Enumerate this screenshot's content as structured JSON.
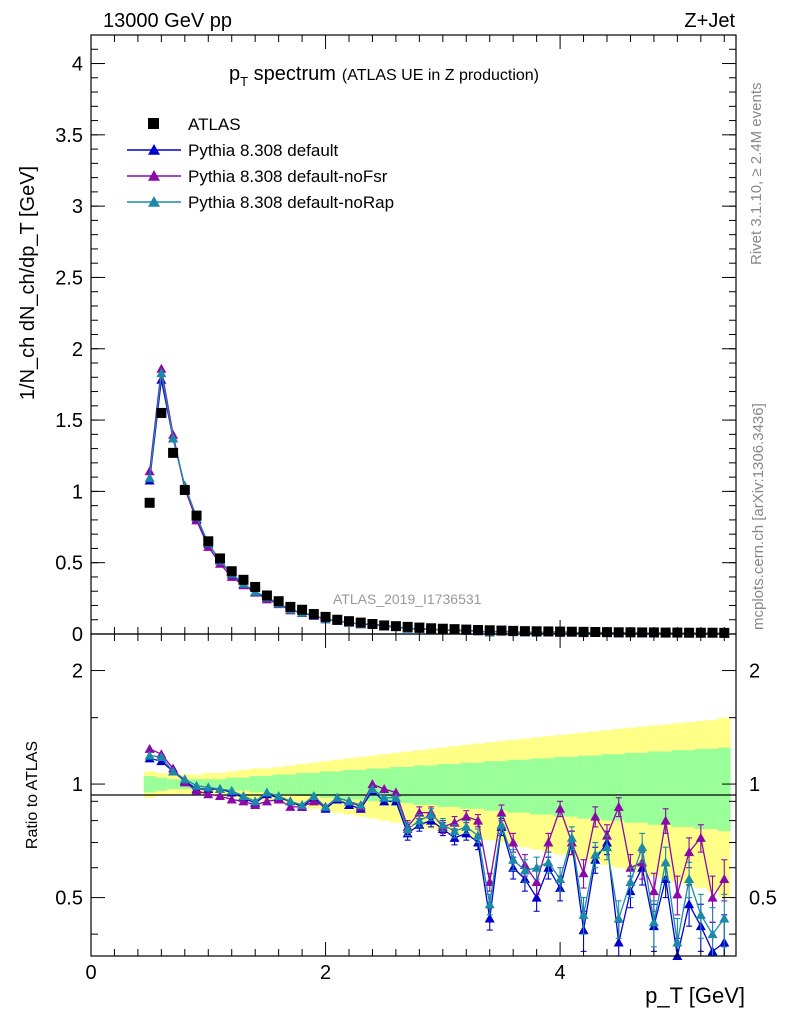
{
  "header": {
    "left": "13000 GeV pp",
    "right": "Z+Jet"
  },
  "title": {
    "main_p": "p",
    "main_sub": "T",
    "main_rest": " spectrum",
    "aside": "(ATLAS UE in Z production)"
  },
  "side_labels": {
    "rivet": "Rivet 3.1.10, ≥ 2.4M events",
    "mcplots": "mcplots.cern.ch [arXiv:1306.3436]"
  },
  "analysis_tag": "ATLAS_2019_I1736531",
  "axes": {
    "top_ylabel": "1/N_ch dN_ch/dp_T [GeV]",
    "bottom_ylabel": "Ratio to ATLAS",
    "xlabel": "p_T [GeV]",
    "x_ticks": [
      "0",
      "2",
      "4"
    ],
    "top_y_ticks": [
      "0",
      "0.5",
      "1",
      "1.5",
      "2",
      "2.5",
      "3",
      "3.5",
      "4"
    ],
    "bottom_y_ticks_left": [
      "0.5",
      "1",
      "2"
    ],
    "bottom_y_ticks_right": [
      "0.5",
      "1",
      "2"
    ]
  },
  "legend": [
    {
      "label": "ATLAS",
      "color": "#000000",
      "marker": "square"
    },
    {
      "label": "Pythia 8.308 default",
      "color": "#0000cc",
      "marker": "triangle"
    },
    {
      "label": "Pythia 8.308 default-noFsr",
      "color": "#8a0aa8",
      "marker": "triangle"
    },
    {
      "label": "Pythia 8.308 default-noRap",
      "color": "#1a8aa8",
      "marker": "triangle"
    }
  ],
  "colors": {
    "band_outer": "#ffff88",
    "band_inner": "#99ff99"
  },
  "chart_data": {
    "type": "scatter",
    "x_range": [
      0,
      5.5
    ],
    "top_y_range": [
      0,
      4.2
    ],
    "ratio_y_scale": "log",
    "ratio_y_range": [
      0.35,
      2.5
    ],
    "grid": false,
    "legend_position": "top-left",
    "x": [
      0.5,
      0.6,
      0.7,
      0.8,
      0.9,
      1.0,
      1.1,
      1.2,
      1.3,
      1.4,
      1.5,
      1.6,
      1.7,
      1.8,
      1.9,
      2.0,
      2.1,
      2.2,
      2.3,
      2.4,
      2.5,
      2.6,
      2.7,
      2.8,
      2.9,
      3.0,
      3.1,
      3.2,
      3.3,
      3.4,
      3.5,
      3.6,
      3.7,
      3.8,
      3.9,
      4.0,
      4.1,
      4.2,
      4.3,
      4.4,
      4.5,
      4.6,
      4.7,
      4.8,
      4.9,
      5.0,
      5.1,
      5.2,
      5.3,
      5.4
    ],
    "atlas": [
      0.92,
      1.55,
      1.27,
      1.01,
      0.83,
      0.65,
      0.53,
      0.44,
      0.38,
      0.33,
      0.27,
      0.23,
      0.19,
      0.17,
      0.14,
      0.12,
      0.1,
      0.09,
      0.08,
      0.07,
      0.06,
      0.055,
      0.05,
      0.045,
      0.04,
      0.037,
      0.034,
      0.031,
      0.028,
      0.026,
      0.024,
      0.022,
      0.02,
      0.019,
      0.018,
      0.017,
      0.016,
      0.015,
      0.014,
      0.013,
      0.012,
      0.012,
      0.011,
      0.011,
      0.01,
      0.01,
      0.009,
      0.009,
      0.009,
      0.008
    ],
    "band_inner": [
      0.05,
      0.04,
      0.03,
      0.03,
      0.03,
      0.03,
      0.03,
      0.04,
      0.04,
      0.05,
      0.05,
      0.06,
      0.06,
      0.07,
      0.07,
      0.08,
      0.08,
      0.09,
      0.09,
      0.1,
      0.1,
      0.11,
      0.11,
      0.12,
      0.12,
      0.13,
      0.13,
      0.14,
      0.14,
      0.15,
      0.15,
      0.16,
      0.16,
      0.17,
      0.17,
      0.18,
      0.18,
      0.19,
      0.19,
      0.2,
      0.2,
      0.21,
      0.21,
      0.22,
      0.22,
      0.23,
      0.23,
      0.24,
      0.24,
      0.25
    ],
    "band_outer": [
      0.08,
      0.07,
      0.06,
      0.06,
      0.06,
      0.07,
      0.07,
      0.08,
      0.09,
      0.1,
      0.1,
      0.11,
      0.12,
      0.13,
      0.14,
      0.15,
      0.16,
      0.17,
      0.18,
      0.19,
      0.2,
      0.21,
      0.22,
      0.23,
      0.24,
      0.25,
      0.26,
      0.27,
      0.28,
      0.29,
      0.3,
      0.31,
      0.32,
      0.33,
      0.34,
      0.35,
      0.36,
      0.37,
      0.38,
      0.39,
      0.4,
      0.41,
      0.42,
      0.43,
      0.44,
      0.45,
      0.46,
      0.47,
      0.48,
      0.5
    ],
    "series": [
      {
        "name": "Pythia 8.308 default",
        "color": "#0000cc",
        "ratio": [
          1.17,
          1.15,
          1.08,
          1.02,
          0.97,
          0.97,
          0.97,
          0.95,
          0.92,
          0.89,
          0.94,
          0.92,
          0.9,
          0.87,
          0.92,
          0.86,
          0.91,
          0.88,
          0.86,
          0.96,
          0.9,
          0.9,
          0.74,
          0.78,
          0.8,
          0.76,
          0.72,
          0.74,
          0.7,
          0.44,
          0.77,
          0.6,
          0.56,
          0.5,
          0.6,
          0.53,
          0.7,
          0.41,
          0.63,
          0.7,
          0.38,
          0.52,
          0.6,
          0.42,
          0.56,
          0.33,
          0.48,
          0.42,
          0.36,
          0.38
        ],
        "err": [
          0.02,
          0.02,
          0.02,
          0.02,
          0.02,
          0.02,
          0.02,
          0.02,
          0.02,
          0.02,
          0.02,
          0.02,
          0.02,
          0.02,
          0.02,
          0.02,
          0.02,
          0.02,
          0.02,
          0.02,
          0.02,
          0.02,
          0.03,
          0.03,
          0.03,
          0.03,
          0.03,
          0.03,
          0.03,
          0.03,
          0.04,
          0.04,
          0.04,
          0.04,
          0.04,
          0.04,
          0.05,
          0.05,
          0.05,
          0.05,
          0.05,
          0.05,
          0.06,
          0.06,
          0.06,
          0.06,
          0.06,
          0.06,
          0.07,
          0.07
        ]
      },
      {
        "name": "Pythia 8.308 default-noFsr",
        "color": "#8a0aa8",
        "ratio": [
          1.24,
          1.2,
          1.1,
          1.01,
          0.96,
          0.94,
          0.93,
          0.91,
          0.9,
          0.88,
          0.9,
          0.91,
          0.87,
          0.87,
          0.9,
          0.87,
          0.92,
          0.9,
          0.87,
          1.0,
          0.97,
          0.95,
          0.77,
          0.84,
          0.84,
          0.77,
          0.79,
          0.82,
          0.8,
          0.55,
          0.84,
          0.7,
          0.61,
          0.55,
          0.7,
          0.86,
          0.7,
          0.58,
          0.82,
          0.73,
          0.87,
          0.6,
          0.62,
          0.52,
          0.8,
          0.51,
          0.66,
          0.72,
          0.5,
          0.56
        ],
        "err": [
          0.02,
          0.02,
          0.02,
          0.02,
          0.02,
          0.02,
          0.02,
          0.02,
          0.02,
          0.02,
          0.02,
          0.02,
          0.02,
          0.02,
          0.02,
          0.02,
          0.02,
          0.02,
          0.02,
          0.02,
          0.02,
          0.02,
          0.03,
          0.03,
          0.03,
          0.03,
          0.03,
          0.03,
          0.03,
          0.03,
          0.04,
          0.04,
          0.04,
          0.04,
          0.04,
          0.04,
          0.05,
          0.05,
          0.05,
          0.05,
          0.05,
          0.05,
          0.06,
          0.06,
          0.06,
          0.06,
          0.06,
          0.06,
          0.07,
          0.07
        ]
      },
      {
        "name": "Pythia 8.308 default-noRap",
        "color": "#1a8aa8",
        "ratio": [
          1.19,
          1.18,
          1.08,
          1.03,
          0.99,
          0.98,
          0.97,
          0.96,
          0.93,
          0.9,
          0.95,
          0.93,
          0.9,
          0.88,
          0.93,
          0.87,
          0.92,
          0.9,
          0.88,
          0.97,
          0.92,
          0.92,
          0.76,
          0.8,
          0.83,
          0.78,
          0.75,
          0.77,
          0.73,
          0.48,
          0.78,
          0.63,
          0.59,
          0.6,
          0.62,
          0.56,
          0.72,
          0.45,
          0.65,
          0.68,
          0.44,
          0.55,
          0.68,
          0.43,
          0.62,
          0.38,
          0.56,
          0.45,
          0.4,
          0.44
        ],
        "err": [
          0.02,
          0.02,
          0.02,
          0.02,
          0.02,
          0.02,
          0.02,
          0.02,
          0.02,
          0.02,
          0.02,
          0.02,
          0.02,
          0.02,
          0.02,
          0.02,
          0.02,
          0.02,
          0.02,
          0.02,
          0.02,
          0.02,
          0.03,
          0.03,
          0.03,
          0.03,
          0.03,
          0.03,
          0.03,
          0.03,
          0.04,
          0.04,
          0.04,
          0.04,
          0.04,
          0.04,
          0.05,
          0.05,
          0.05,
          0.05,
          0.05,
          0.05,
          0.06,
          0.06,
          0.06,
          0.06,
          0.06,
          0.06,
          0.07,
          0.07
        ]
      }
    ]
  }
}
